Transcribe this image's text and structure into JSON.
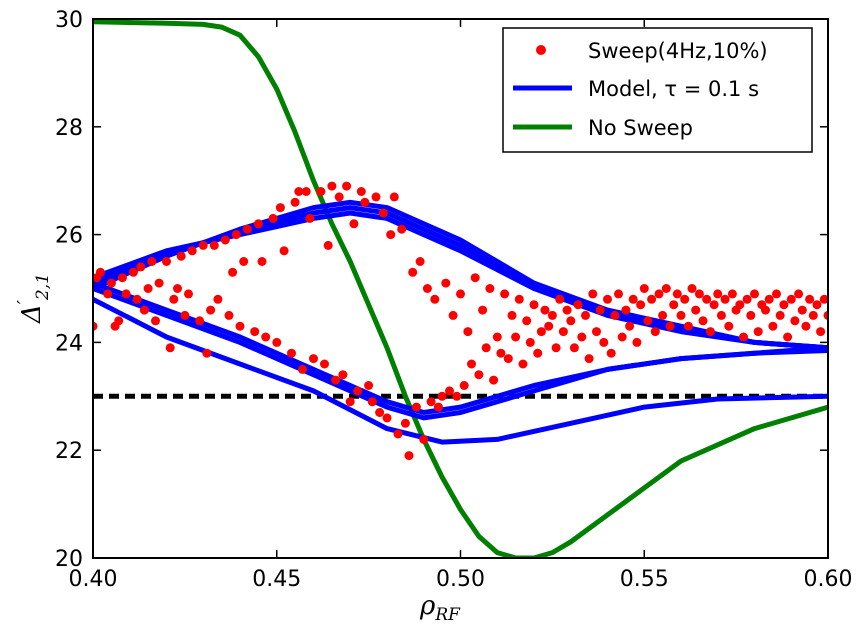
{
  "chart_data": {
    "type": "scatter",
    "title": "",
    "xlabel": "ρ",
    "xlabel_sub": "RF",
    "ylabel": "Δ",
    "ylabel_prime": "′",
    "ylabel_sub": "2,1",
    "xlim": [
      0.4,
      0.6
    ],
    "ylim": [
      20,
      30
    ],
    "xticks": [
      0.4,
      0.45,
      0.5,
      0.55,
      0.6
    ],
    "xtick_labels": [
      "0.40",
      "0.45",
      "0.50",
      "0.55",
      "0.60"
    ],
    "yticks": [
      20,
      22,
      24,
      26,
      28,
      30
    ],
    "ytick_labels": [
      "20",
      "22",
      "24",
      "26",
      "28",
      "30"
    ],
    "grid": false,
    "legend_position": "top-right",
    "reference_line": {
      "y": 23.0,
      "style": "dashed",
      "color": "#000000"
    },
    "colors": {
      "sweep": "#ff0000",
      "model": "#0000ff",
      "nosweep": "#008000"
    },
    "series": [
      {
        "name": "Sweep(4Hz,10%)",
        "kind": "points",
        "points": [
          [
            0.4,
            24.3
          ],
          [
            0.401,
            25.2
          ],
          [
            0.402,
            25.3
          ],
          [
            0.404,
            24.9
          ],
          [
            0.405,
            25.1
          ],
          [
            0.406,
            24.3
          ],
          [
            0.407,
            24.4
          ],
          [
            0.408,
            25.2
          ],
          [
            0.409,
            24.9
          ],
          [
            0.411,
            25.3
          ],
          [
            0.412,
            24.8
          ],
          [
            0.413,
            25.4
          ],
          [
            0.414,
            24.6
          ],
          [
            0.415,
            25.0
          ],
          [
            0.416,
            25.5
          ],
          [
            0.417,
            24.4
          ],
          [
            0.418,
            25.1
          ],
          [
            0.42,
            25.5
          ],
          [
            0.421,
            23.9
          ],
          [
            0.422,
            24.8
          ],
          [
            0.423,
            25.0
          ],
          [
            0.424,
            25.6
          ],
          [
            0.425,
            24.5
          ],
          [
            0.426,
            24.9
          ],
          [
            0.427,
            25.7
          ],
          [
            0.429,
            24.4
          ],
          [
            0.43,
            25.8
          ],
          [
            0.431,
            23.8
          ],
          [
            0.432,
            24.6
          ],
          [
            0.433,
            25.8
          ],
          [
            0.434,
            24.8
          ],
          [
            0.436,
            25.9
          ],
          [
            0.437,
            24.5
          ],
          [
            0.438,
            25.3
          ],
          [
            0.439,
            26.0
          ],
          [
            0.44,
            24.3
          ],
          [
            0.441,
            25.5
          ],
          [
            0.442,
            26.1
          ],
          [
            0.444,
            24.2
          ],
          [
            0.445,
            26.2
          ],
          [
            0.446,
            25.5
          ],
          [
            0.447,
            24.1
          ],
          [
            0.449,
            26.3
          ],
          [
            0.45,
            24.0
          ],
          [
            0.451,
            26.5
          ],
          [
            0.452,
            25.7
          ],
          [
            0.454,
            23.8
          ],
          [
            0.455,
            26.6
          ],
          [
            0.456,
            26.8
          ],
          [
            0.457,
            23.5
          ],
          [
            0.458,
            26.8
          ],
          [
            0.459,
            26.3
          ],
          [
            0.46,
            23.7
          ],
          [
            0.462,
            26.8
          ],
          [
            0.463,
            23.6
          ],
          [
            0.464,
            25.8
          ],
          [
            0.465,
            26.9
          ],
          [
            0.466,
            23.3
          ],
          [
            0.467,
            26.7
          ],
          [
            0.468,
            23.4
          ],
          [
            0.469,
            26.9
          ],
          [
            0.47,
            22.9
          ],
          [
            0.471,
            26.2
          ],
          [
            0.472,
            23.1
          ],
          [
            0.473,
            26.8
          ],
          [
            0.474,
            26.6
          ],
          [
            0.475,
            23.2
          ],
          [
            0.476,
            22.9
          ],
          [
            0.477,
            26.7
          ],
          [
            0.478,
            22.7
          ],
          [
            0.479,
            26.4
          ],
          [
            0.48,
            22.6
          ],
          [
            0.481,
            26.0
          ],
          [
            0.482,
            26.7
          ],
          [
            0.483,
            22.3
          ],
          [
            0.484,
            26.1
          ],
          [
            0.485,
            22.5
          ],
          [
            0.486,
            21.9
          ],
          [
            0.487,
            25.3
          ],
          [
            0.488,
            22.8
          ],
          [
            0.489,
            25.5
          ],
          [
            0.49,
            22.2
          ],
          [
            0.491,
            25.0
          ],
          [
            0.492,
            22.9
          ],
          [
            0.493,
            24.8
          ],
          [
            0.494,
            22.8
          ],
          [
            0.495,
            23.0
          ],
          [
            0.496,
            25.1
          ],
          [
            0.497,
            23.1
          ],
          [
            0.498,
            24.5
          ],
          [
            0.499,
            23.0
          ],
          [
            0.5,
            24.9
          ],
          [
            0.501,
            23.2
          ],
          [
            0.502,
            24.2
          ],
          [
            0.503,
            23.6
          ],
          [
            0.504,
            25.2
          ],
          [
            0.505,
            23.4
          ],
          [
            0.506,
            24.6
          ],
          [
            0.507,
            23.9
          ],
          [
            0.508,
            25.0
          ],
          [
            0.509,
            23.3
          ],
          [
            0.51,
            24.1
          ],
          [
            0.511,
            23.8
          ],
          [
            0.512,
            24.9
          ],
          [
            0.513,
            23.7
          ],
          [
            0.514,
            24.5
          ],
          [
            0.515,
            24.1
          ],
          [
            0.516,
            24.8
          ],
          [
            0.517,
            23.6
          ],
          [
            0.518,
            24.4
          ],
          [
            0.519,
            24.0
          ],
          [
            0.52,
            24.7
          ],
          [
            0.521,
            23.8
          ],
          [
            0.522,
            24.2
          ],
          [
            0.523,
            24.6
          ],
          [
            0.524,
            24.3
          ],
          [
            0.525,
            24.5
          ],
          [
            0.526,
            23.9
          ],
          [
            0.527,
            24.8
          ],
          [
            0.528,
            24.2
          ],
          [
            0.529,
            24.6
          ],
          [
            0.53,
            24.4
          ],
          [
            0.531,
            23.9
          ],
          [
            0.532,
            24.7
          ],
          [
            0.533,
            24.1
          ],
          [
            0.534,
            24.5
          ],
          [
            0.535,
            23.7
          ],
          [
            0.536,
            24.9
          ],
          [
            0.537,
            24.2
          ],
          [
            0.538,
            24.6
          ],
          [
            0.539,
            24.0
          ],
          [
            0.54,
            24.8
          ],
          [
            0.541,
            23.8
          ],
          [
            0.542,
            24.5
          ],
          [
            0.543,
            24.9
          ],
          [
            0.544,
            24.1
          ],
          [
            0.545,
            24.6
          ],
          [
            0.546,
            24.3
          ],
          [
            0.547,
            24.8
          ],
          [
            0.548,
            24.0
          ],
          [
            0.549,
            24.7
          ],
          [
            0.55,
            25.0
          ],
          [
            0.551,
            24.4
          ],
          [
            0.552,
            24.8
          ],
          [
            0.553,
            24.2
          ],
          [
            0.554,
            24.9
          ],
          [
            0.555,
            24.5
          ],
          [
            0.556,
            25.0
          ],
          [
            0.557,
            24.3
          ],
          [
            0.558,
            24.7
          ],
          [
            0.559,
            24.9
          ],
          [
            0.56,
            24.5
          ],
          [
            0.561,
            24.8
          ],
          [
            0.562,
            24.3
          ],
          [
            0.563,
            25.0
          ],
          [
            0.564,
            24.6
          ],
          [
            0.565,
            24.9
          ],
          [
            0.566,
            24.4
          ],
          [
            0.567,
            24.8
          ],
          [
            0.568,
            24.2
          ],
          [
            0.569,
            24.7
          ],
          [
            0.57,
            24.9
          ],
          [
            0.571,
            24.5
          ],
          [
            0.572,
            24.8
          ],
          [
            0.573,
            24.3
          ],
          [
            0.574,
            24.9
          ],
          [
            0.575,
            24.6
          ],
          [
            0.576,
            24.7
          ],
          [
            0.577,
            24.1
          ],
          [
            0.578,
            24.8
          ],
          [
            0.579,
            24.5
          ],
          [
            0.58,
            24.9
          ],
          [
            0.581,
            24.2
          ],
          [
            0.582,
            24.7
          ],
          [
            0.583,
            24.6
          ],
          [
            0.584,
            24.8
          ],
          [
            0.585,
            24.3
          ],
          [
            0.586,
            24.9
          ],
          [
            0.587,
            24.5
          ],
          [
            0.588,
            24.7
          ],
          [
            0.589,
            24.1
          ],
          [
            0.59,
            24.8
          ],
          [
            0.591,
            24.4
          ],
          [
            0.592,
            24.9
          ],
          [
            0.593,
            24.6
          ],
          [
            0.594,
            24.3
          ],
          [
            0.595,
            24.8
          ],
          [
            0.596,
            24.5
          ],
          [
            0.597,
            24.7
          ],
          [
            0.598,
            24.2
          ],
          [
            0.599,
            24.8
          ],
          [
            0.6,
            24.5
          ]
        ]
      },
      {
        "name": "Model, τ = 0.1 s",
        "kind": "curves",
        "curves": [
          [
            [
              0.4,
              25.0
            ],
            [
              0.42,
              25.6
            ],
            [
              0.44,
              26.1
            ],
            [
              0.46,
              26.5
            ],
            [
              0.47,
              26.6
            ],
            [
              0.48,
              26.5
            ],
            [
              0.5,
              25.9
            ],
            [
              0.52,
              25.1
            ],
            [
              0.54,
              24.6
            ],
            [
              0.56,
              24.3
            ],
            [
              0.58,
              24.0
            ],
            [
              0.6,
              23.9
            ]
          ],
          [
            [
              0.4,
              25.2
            ],
            [
              0.42,
              25.7
            ],
            [
              0.44,
              26.0
            ],
            [
              0.46,
              26.3
            ],
            [
              0.47,
              26.4
            ],
            [
              0.48,
              26.3
            ],
            [
              0.5,
              25.7
            ],
            [
              0.52,
              25.0
            ],
            [
              0.54,
              24.5
            ],
            [
              0.56,
              24.2
            ],
            [
              0.58,
              24.0
            ],
            [
              0.6,
              23.9
            ]
          ],
          [
            [
              0.4,
              25.1
            ],
            [
              0.42,
              25.65
            ],
            [
              0.44,
              26.05
            ],
            [
              0.46,
              26.4
            ],
            [
              0.47,
              26.5
            ],
            [
              0.48,
              26.4
            ],
            [
              0.5,
              25.8
            ],
            [
              0.52,
              25.05
            ],
            [
              0.54,
              24.55
            ],
            [
              0.56,
              24.25
            ],
            [
              0.58,
              24.0
            ],
            [
              0.6,
              23.9
            ]
          ],
          [
            [
              0.4,
              25.0
            ],
            [
              0.42,
              24.5
            ],
            [
              0.44,
              24.0
            ],
            [
              0.46,
              23.4
            ],
            [
              0.48,
              22.8
            ],
            [
              0.49,
              22.6
            ],
            [
              0.5,
              22.7
            ],
            [
              0.52,
              23.1
            ],
            [
              0.54,
              23.5
            ],
            [
              0.56,
              23.7
            ],
            [
              0.58,
              23.8
            ],
            [
              0.6,
              23.9
            ]
          ],
          [
            [
              0.4,
              25.1
            ],
            [
              0.42,
              24.6
            ],
            [
              0.44,
              24.1
            ],
            [
              0.46,
              23.5
            ],
            [
              0.48,
              22.9
            ],
            [
              0.49,
              22.7
            ],
            [
              0.5,
              22.8
            ],
            [
              0.52,
              23.2
            ],
            [
              0.54,
              23.5
            ],
            [
              0.56,
              23.7
            ],
            [
              0.58,
              23.8
            ],
            [
              0.6,
              23.85
            ]
          ],
          [
            [
              0.4,
              24.8
            ],
            [
              0.42,
              24.1
            ],
            [
              0.44,
              23.6
            ],
            [
              0.46,
              23.1
            ],
            [
              0.48,
              22.4
            ],
            [
              0.495,
              22.15
            ],
            [
              0.51,
              22.2
            ],
            [
              0.53,
              22.5
            ],
            [
              0.55,
              22.8
            ],
            [
              0.57,
              22.95
            ],
            [
              0.6,
              23.0
            ]
          ]
        ]
      },
      {
        "name": "No Sweep",
        "kind": "line",
        "x": [
          0.4,
          0.42,
          0.43,
          0.435,
          0.44,
          0.445,
          0.45,
          0.455,
          0.46,
          0.465,
          0.47,
          0.475,
          0.48,
          0.485,
          0.49,
          0.495,
          0.5,
          0.505,
          0.51,
          0.515,
          0.52,
          0.525,
          0.53,
          0.54,
          0.55,
          0.56,
          0.57,
          0.58,
          0.59,
          0.6
        ],
        "y": [
          29.95,
          29.92,
          29.9,
          29.85,
          29.7,
          29.3,
          28.7,
          27.9,
          27.0,
          26.2,
          25.5,
          24.7,
          23.9,
          23.0,
          22.2,
          21.5,
          20.9,
          20.4,
          20.1,
          20.0,
          20.0,
          20.1,
          20.3,
          20.8,
          21.3,
          21.8,
          22.1,
          22.4,
          22.6,
          22.8
        ]
      }
    ]
  }
}
